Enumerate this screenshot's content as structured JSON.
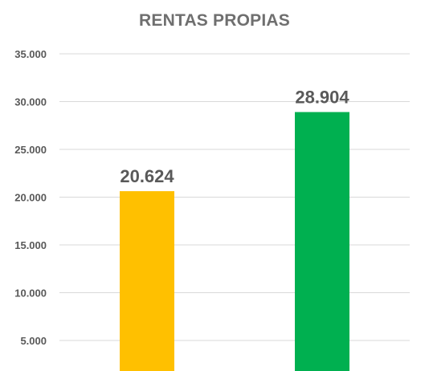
{
  "chart_data": {
    "type": "bar",
    "title": "RENTAS PROPIAS",
    "categories": [
      "",
      ""
    ],
    "values": [
      20624,
      28904
    ],
    "value_labels": [
      "20.624",
      "28.904"
    ],
    "bar_colors": [
      "#FFC000",
      "#00B050"
    ],
    "yticks": [
      {
        "value": 5000,
        "label": "5.000"
      },
      {
        "value": 10000,
        "label": "10.000"
      },
      {
        "value": 15000,
        "label": "15.000"
      },
      {
        "value": 20000,
        "label": "20.000"
      },
      {
        "value": 25000,
        "label": "25.000"
      },
      {
        "value": 30000,
        "label": "30.000"
      },
      {
        "value": 35000,
        "label": "35.000"
      }
    ],
    "ylim": [
      0,
      35000
    ],
    "grid": true,
    "legend": "none",
    "xlabel": "",
    "ylabel": ""
  }
}
